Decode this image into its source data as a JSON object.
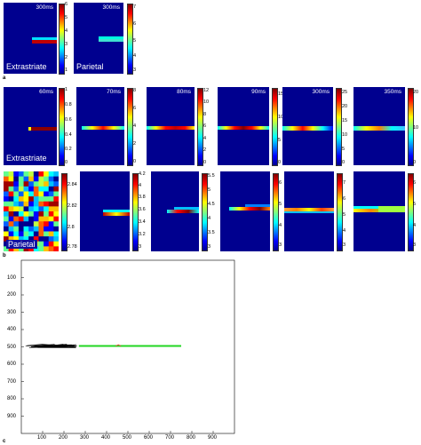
{
  "row_a": {
    "letter": "a",
    "panels": [
      {
        "title": "300ms",
        "label": "Extrastriate",
        "ticks": [
          "6",
          "5",
          "4",
          "3",
          "2",
          "1"
        ]
      },
      {
        "title": "300ms",
        "label": "Parietal",
        "ticks": [
          "7",
          "6",
          "5",
          "4",
          "3"
        ]
      }
    ]
  },
  "row_b1": {
    "label": "Extrastriate",
    "panels": [
      {
        "title": "60ms",
        "ticks": [
          "1",
          "0.8",
          "0.6",
          "0.4",
          "0.2",
          "0"
        ]
      },
      {
        "title": "70ms",
        "ticks": [
          "8",
          "6",
          "4",
          "2",
          "0"
        ]
      },
      {
        "title": "80ms",
        "ticks": [
          "12",
          "10",
          "8",
          "6",
          "4",
          "2",
          "0"
        ]
      },
      {
        "title": "90ms",
        "ticks": [
          "15",
          "10",
          "5",
          "0"
        ]
      },
      {
        "title": "300ms",
        "ticks": [
          "25",
          "20",
          "15",
          "10",
          "5",
          "0"
        ]
      },
      {
        "title": "350ms",
        "ticks": [
          "20",
          "10",
          "0"
        ]
      }
    ]
  },
  "row_b2": {
    "letter": "b",
    "label": "Parietal",
    "panels": [
      {
        "title": "",
        "ticks": [
          "2.84",
          "2.82",
          "2.8",
          "2.78"
        ]
      },
      {
        "title": "",
        "ticks": [
          "4.2",
          "4",
          "3.8",
          "3.6",
          "3.4",
          "3.2",
          "3"
        ]
      },
      {
        "title": "",
        "ticks": [
          "5.5",
          "5",
          "4.5",
          "4",
          "3.5",
          "3"
        ]
      },
      {
        "title": "",
        "ticks": [
          "6",
          "5",
          "4",
          "3"
        ]
      },
      {
        "title": "",
        "ticks": [
          "7",
          "6",
          "5",
          "4",
          "3"
        ]
      },
      {
        "title": "",
        "ticks": [
          "6",
          "5",
          "4",
          "3"
        ]
      }
    ]
  },
  "plot_c": {
    "letter": "c",
    "y_ticks": [
      "100",
      "200",
      "300",
      "400",
      "500",
      "600",
      "700",
      "800",
      "900"
    ],
    "x_ticks": [
      "100",
      "200",
      "300",
      "400",
      "500",
      "600",
      "700",
      "800",
      "900"
    ],
    "xlim": [
      0,
      1000
    ],
    "ylim": [
      0,
      1000
    ],
    "green_line": {
      "x": [
        270,
        750
      ],
      "y": [
        495,
        495
      ],
      "color": "#22d622"
    },
    "black_trace": {
      "x": [
        20,
        270
      ],
      "y": [
        495,
        495
      ],
      "color": "#000000"
    }
  }
}
